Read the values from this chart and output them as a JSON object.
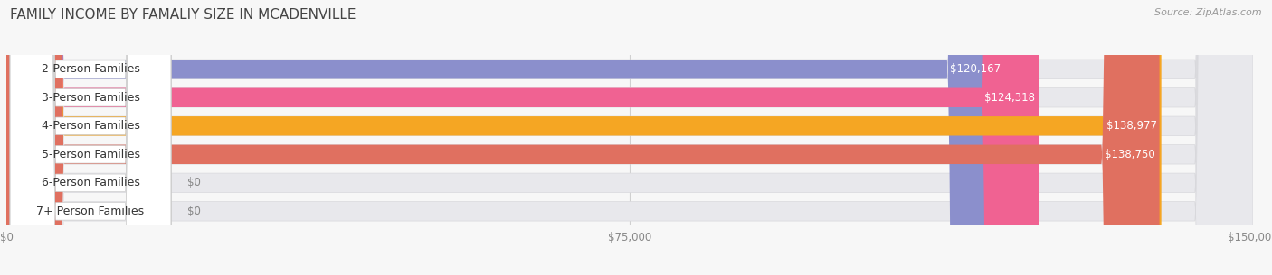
{
  "title": "FAMILY INCOME BY FAMALIY SIZE IN MCADENVILLE",
  "source": "Source: ZipAtlas.com",
  "categories": [
    "2-Person Families",
    "3-Person Families",
    "4-Person Families",
    "5-Person Families",
    "6-Person Families",
    "7+ Person Families"
  ],
  "values": [
    120167,
    124318,
    138977,
    138750,
    0,
    0
  ],
  "bar_colors": [
    "#8b8fcc",
    "#f06292",
    "#f5a623",
    "#e07060",
    "#90b8e0",
    "#c4a0c8"
  ],
  "xlim": [
    0,
    150000
  ],
  "xticks": [
    0,
    75000,
    150000
  ],
  "xticklabels": [
    "$0",
    "$75,000",
    "$150,000"
  ],
  "background_color": "#f7f7f7",
  "bar_bg_color": "#e8e8ec",
  "title_fontsize": 11,
  "source_fontsize": 8,
  "label_fontsize": 9,
  "value_fontsize": 8.5,
  "tick_fontsize": 8.5,
  "bar_height": 0.68,
  "bar_gap": 1.0
}
